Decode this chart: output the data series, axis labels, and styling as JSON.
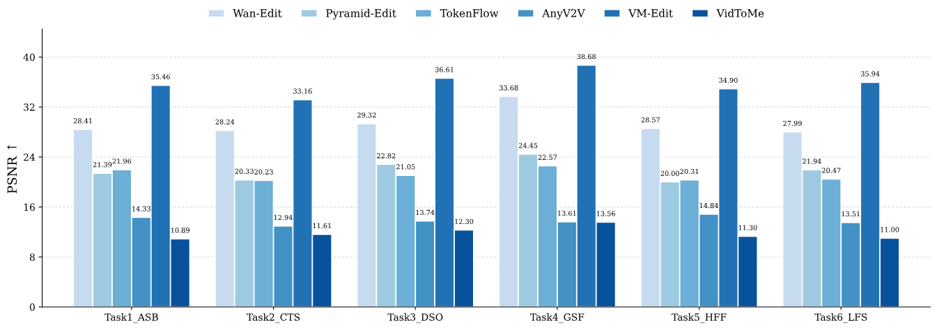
{
  "chart_data": {
    "type": "bar",
    "ylabel": "PSNR ↑",
    "categories": [
      "Task1_ASB",
      "Task2_CTS",
      "Task3_DSO",
      "Task4_GSF",
      "Task5_HFF",
      "Task6_LFS"
    ],
    "series": [
      {
        "name": "Wan-Edit",
        "color": "#c6dbef",
        "values": [
          28.41,
          28.24,
          29.32,
          33.68,
          28.57,
          27.99
        ],
        "value_labels": [
          "28.41",
          "28.24",
          "29.32",
          "33.68",
          "28.57",
          "27.99"
        ]
      },
      {
        "name": "Pyramid-Edit",
        "color": "#9ecae1",
        "values": [
          21.39,
          20.33,
          22.82,
          24.45,
          20.0,
          21.94
        ],
        "value_labels": [
          "21.39",
          "20.33",
          "22.82",
          "24.45",
          "20.00",
          "21.94"
        ]
      },
      {
        "name": "TokenFlow",
        "color": "#6baed6",
        "values": [
          21.96,
          20.23,
          21.05,
          22.57,
          20.31,
          20.47
        ],
        "value_labels": [
          "21.96",
          "20.23",
          "21.05",
          "22.57",
          "20.31",
          "20.47"
        ]
      },
      {
        "name": "AnyV2V",
        "color": "#4292c6",
        "values": [
          14.33,
          12.94,
          13.74,
          13.61,
          14.84,
          13.51
        ],
        "value_labels": [
          "14.33",
          "12.94",
          "13.74",
          "13.61",
          "14.84",
          "13.51"
        ]
      },
      {
        "name": "VM-Edit",
        "color": "#2171b5",
        "values": [
          35.46,
          33.16,
          36.61,
          38.68,
          34.9,
          35.94
        ],
        "value_labels": [
          "35.46",
          "33.16",
          "36.61",
          "38.68",
          "34.90",
          "35.94"
        ]
      },
      {
        "name": "VidToMe",
        "color": "#08519c",
        "values": [
          10.89,
          11.61,
          12.3,
          13.56,
          11.3,
          11.0
        ],
        "value_labels": [
          "10.89",
          "11.61",
          "12.30",
          "13.56",
          "11.30",
          "11.00"
        ]
      }
    ],
    "ylim": [
      0,
      44.5
    ],
    "yticks": [
      0,
      8,
      16,
      24,
      32,
      40
    ],
    "grid": "y",
    "legend": "top"
  }
}
